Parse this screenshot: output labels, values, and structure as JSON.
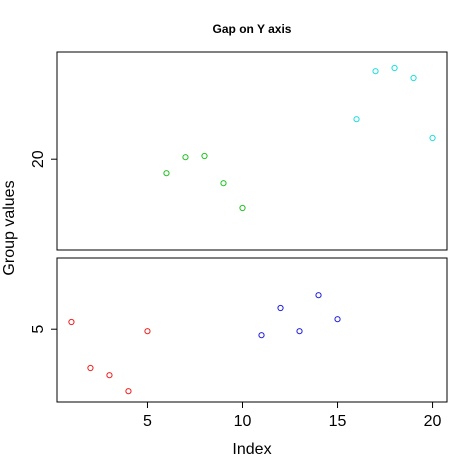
{
  "chart_data": {
    "type": "scatter",
    "title": "Gap on Y axis",
    "xlabel": "Index",
    "ylabel": "Group values",
    "xlim": [
      0.24,
      20.76
    ],
    "xticks": [
      5,
      10,
      15,
      20
    ],
    "panels": [
      {
        "ylim": [
          17.73,
          22.68
        ],
        "yticks": [
          20
        ],
        "series": [
          {
            "color": "#22c322",
            "x": [
              6,
              7,
              8,
              9,
              10
            ],
            "values": [
              19.65,
              20.05,
              20.08,
              19.4,
              18.78
            ]
          },
          {
            "color": "#22dddd",
            "x": [
              16,
              17,
              18,
              19,
              20
            ],
            "values": [
              21.0,
              22.2,
              22.28,
              22.03,
              20.53
            ]
          }
        ]
      },
      {
        "ylim": [
          3.18,
          6.78
        ],
        "yticks": [
          5
        ],
        "series": [
          {
            "color": "#ee2222",
            "x": [
              1,
              2,
              3,
              4,
              5
            ],
            "values": [
              5.18,
              4.03,
              3.85,
              3.45,
              4.95
            ]
          },
          {
            "color": "#2222dd",
            "x": [
              11,
              12,
              13,
              14,
              15
            ],
            "values": [
              4.85,
              5.53,
              4.95,
              5.85,
              5.25
            ]
          }
        ]
      }
    ]
  }
}
